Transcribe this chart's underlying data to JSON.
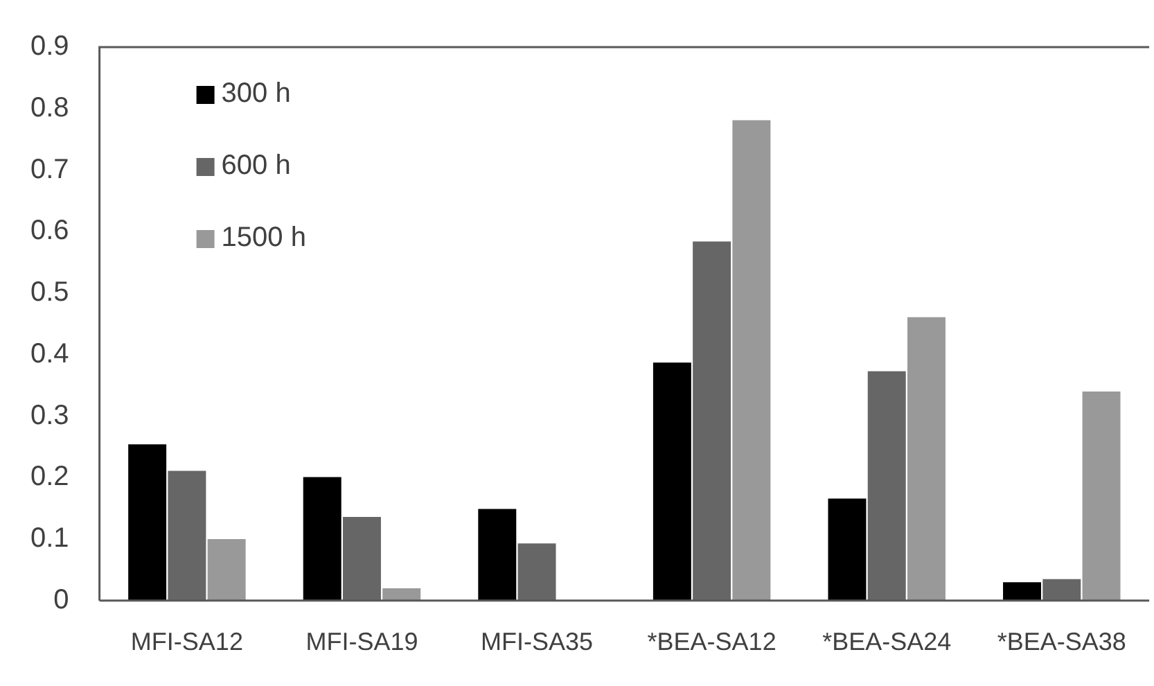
{
  "chart_data": {
    "type": "bar",
    "categories": [
      "MFI-SA12",
      "MFI-SA19",
      "MFI-SA35",
      "*BEA-SA12",
      "*BEA-SA24",
      "*BEA-SA38"
    ],
    "series": [
      {
        "name": "300 h",
        "color": "#000000",
        "values": [
          0.254,
          0.201,
          0.149,
          0.387,
          0.166,
          0.03
        ]
      },
      {
        "name": "600 h",
        "color": "#666666",
        "values": [
          0.211,
          0.136,
          0.093,
          0.584,
          0.373,
          0.035
        ]
      },
      {
        "name": "1500 h",
        "color": "#999999",
        "values": [
          0.1,
          0.02,
          null,
          0.781,
          0.461,
          0.34
        ]
      }
    ],
    "ylim": [
      0,
      0.9
    ],
    "yticks": [
      0,
      0.1,
      0.2,
      0.3,
      0.4,
      0.5,
      0.6,
      0.7,
      0.8,
      0.9
    ],
    "grid": false,
    "legend": "top left"
  }
}
